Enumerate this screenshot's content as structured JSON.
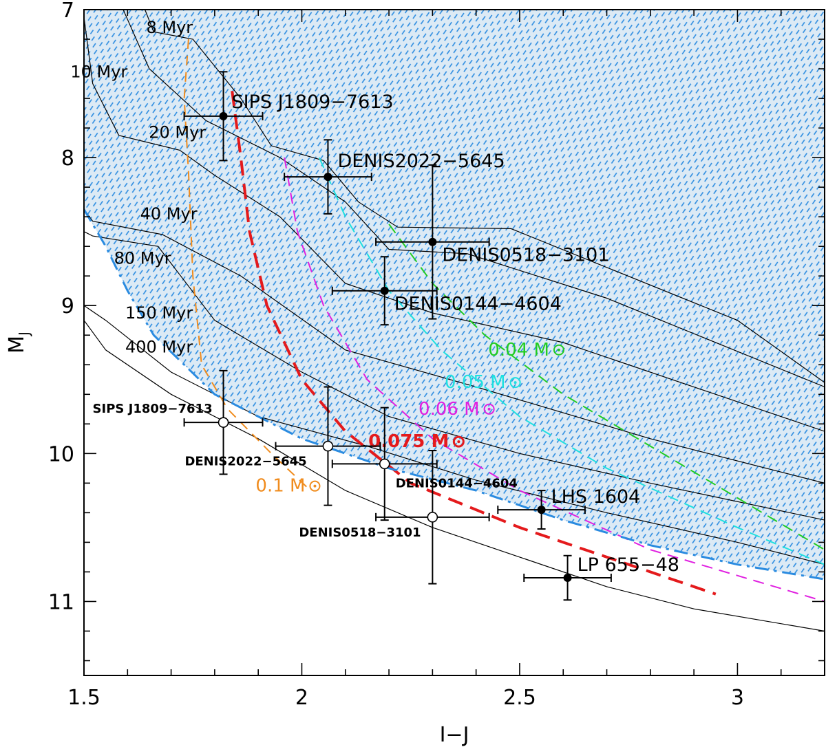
{
  "chart_data": {
    "type": "scatter",
    "title": "",
    "xlabel": "I−J",
    "ylabel": "M",
    "ylabel_sub": "J",
    "xlim": [
      1.5,
      3.2
    ],
    "ylim": [
      11.5,
      7.0
    ],
    "y_inverted": true,
    "x_ticks": [
      1.5,
      2,
      2.5,
      3
    ],
    "x_tick_labels": [
      "1.5",
      "2",
      "2.5",
      "3"
    ],
    "y_ticks": [
      7,
      8,
      9,
      10,
      11
    ],
    "y_tick_labels": [
      "7",
      "8",
      "9",
      "10",
      "11"
    ],
    "grid": false,
    "shaded_region": {
      "fill": "#dceaf5",
      "hatch_color": "#2a8be0",
      "boundary": [
        [
          1.5,
          8.35
        ],
        [
          1.55,
          8.6
        ],
        [
          1.6,
          8.9
        ],
        [
          1.66,
          9.2
        ],
        [
          1.8,
          9.6
        ],
        [
          2.0,
          9.9
        ],
        [
          2.2,
          10.1
        ],
        [
          2.4,
          10.25
        ],
        [
          2.6,
          10.45
        ],
        [
          2.8,
          10.62
        ],
        [
          3.0,
          10.75
        ],
        [
          3.2,
          10.85
        ]
      ]
    },
    "isochrones": [
      {
        "label": "8 Myr",
        "points": [
          [
            1.64,
            7.0
          ],
          [
            1.66,
            7.15
          ],
          [
            1.75,
            7.2
          ],
          [
            1.86,
            7.6
          ],
          [
            1.93,
            7.92
          ],
          [
            2.05,
            8.02
          ],
          [
            2.13,
            8.3
          ],
          [
            2.22,
            8.47
          ],
          [
            2.48,
            8.48
          ],
          [
            3.0,
            9.1
          ],
          [
            3.2,
            9.52
          ]
        ]
      },
      {
        "label": "10 Myr",
        "points": [
          [
            1.59,
            7.0
          ],
          [
            1.65,
            7.4
          ],
          [
            1.78,
            7.75
          ],
          [
            1.95,
            8.0
          ],
          [
            2.1,
            8.3
          ],
          [
            2.2,
            8.62
          ],
          [
            2.38,
            8.65
          ],
          [
            2.7,
            8.95
          ],
          [
            3.2,
            9.55
          ]
        ]
      },
      {
        "label": "20 Myr",
        "points": [
          [
            1.5,
            7.05
          ],
          [
            1.52,
            7.5
          ],
          [
            1.58,
            7.85
          ],
          [
            1.72,
            7.95
          ],
          [
            1.8,
            8.12
          ],
          [
            1.95,
            8.4
          ],
          [
            2.1,
            8.85
          ],
          [
            2.3,
            9.05
          ],
          [
            2.6,
            9.25
          ],
          [
            3.2,
            9.85
          ]
        ]
      },
      {
        "label": "40 Myr",
        "points": [
          [
            1.5,
            8.35
          ],
          [
            1.52,
            8.43
          ],
          [
            1.68,
            8.52
          ],
          [
            1.86,
            8.8
          ],
          [
            2.1,
            9.3
          ],
          [
            2.4,
            9.55
          ],
          [
            2.8,
            9.9
          ],
          [
            3.2,
            10.2
          ]
        ]
      },
      {
        "label": "80 Myr",
        "points": [
          [
            1.5,
            8.5
          ],
          [
            1.52,
            8.53
          ],
          [
            1.67,
            8.6
          ],
          [
            1.8,
            9.1
          ],
          [
            2.0,
            9.45
          ],
          [
            2.2,
            9.75
          ],
          [
            2.5,
            10.0
          ],
          [
            2.8,
            10.2
          ],
          [
            3.2,
            10.45
          ]
        ]
      },
      {
        "label": "150 Myr",
        "points": [
          [
            1.5,
            9.0
          ],
          [
            1.55,
            9.1
          ],
          [
            1.7,
            9.45
          ],
          [
            1.9,
            9.75
          ],
          [
            2.15,
            9.95
          ],
          [
            2.4,
            10.18
          ],
          [
            2.7,
            10.4
          ],
          [
            3.0,
            10.6
          ],
          [
            3.2,
            10.75
          ]
        ]
      },
      {
        "label": "400 Myr",
        "points": [
          [
            1.5,
            9.1
          ],
          [
            1.55,
            9.3
          ],
          [
            1.7,
            9.6
          ],
          [
            1.9,
            9.9
          ],
          [
            2.1,
            10.25
          ],
          [
            2.3,
            10.5
          ],
          [
            2.5,
            10.7
          ],
          [
            2.7,
            10.9
          ],
          [
            2.9,
            11.05
          ],
          [
            3.2,
            11.2
          ]
        ]
      }
    ],
    "mass_tracks": [
      {
        "label": "0.1 M",
        "color": "#f08c1e",
        "width": 2,
        "dash": "14,10",
        "points": [
          [
            1.74,
            7.2
          ],
          [
            1.73,
            7.6
          ],
          [
            1.74,
            8.1
          ],
          [
            1.75,
            8.8
          ],
          [
            1.77,
            9.4
          ],
          [
            1.83,
            9.7
          ],
          [
            1.93,
            10.0
          ],
          [
            2.02,
            10.25
          ]
        ]
      },
      {
        "label": "0.075 M",
        "color": "#e41a1c",
        "width": 4,
        "dash": "22,12",
        "points": [
          [
            1.84,
            7.55
          ],
          [
            1.86,
            8.0
          ],
          [
            1.88,
            8.5
          ],
          [
            1.92,
            9.0
          ],
          [
            2.0,
            9.5
          ],
          [
            2.1,
            9.85
          ],
          [
            2.25,
            10.2
          ],
          [
            2.5,
            10.5
          ],
          [
            2.7,
            10.7
          ],
          [
            2.95,
            10.95
          ]
        ]
      },
      {
        "label": "0.06 M",
        "color": "#e020e0",
        "width": 2,
        "dash": "16,10",
        "points": [
          [
            1.96,
            8.0
          ],
          [
            1.99,
            8.5
          ],
          [
            2.05,
            9.0
          ],
          [
            2.15,
            9.5
          ],
          [
            2.3,
            9.9
          ],
          [
            2.5,
            10.25
          ],
          [
            2.8,
            10.65
          ],
          [
            3.2,
            11.0
          ]
        ]
      },
      {
        "label": "0.05 M",
        "color": "#1ee0e0",
        "width": 2,
        "dash": "16,10",
        "points": [
          [
            2.04,
            8.0
          ],
          [
            2.1,
            8.4
          ],
          [
            2.2,
            8.9
          ],
          [
            2.32,
            9.3
          ],
          [
            2.5,
            9.75
          ],
          [
            2.7,
            10.1
          ],
          [
            3.0,
            10.5
          ],
          [
            3.2,
            10.75
          ]
        ]
      },
      {
        "label": "0.04 M",
        "color": "#22cc22",
        "width": 2,
        "dash": "16,10",
        "points": [
          [
            2.2,
            8.45
          ],
          [
            2.3,
            8.85
          ],
          [
            2.42,
            9.2
          ],
          [
            2.6,
            9.6
          ],
          [
            2.8,
            9.95
          ],
          [
            3.0,
            10.3
          ],
          [
            3.2,
            10.65
          ]
        ]
      }
    ],
    "lithium_boundary": {
      "color": "#2a8be0",
      "width": 3,
      "dash": "20,8,4,8",
      "points": [
        [
          1.5,
          8.35
        ],
        [
          1.55,
          8.6
        ],
        [
          1.6,
          8.9
        ],
        [
          1.66,
          9.2
        ],
        [
          1.8,
          9.6
        ],
        [
          2.0,
          9.9
        ],
        [
          2.2,
          10.1
        ],
        [
          2.4,
          10.25
        ],
        [
          2.6,
          10.45
        ],
        [
          2.8,
          10.62
        ],
        [
          3.0,
          10.75
        ],
        [
          3.2,
          10.85
        ]
      ]
    },
    "objects_filled": [
      {
        "label": "SIPS J1809−7613",
        "x": 1.82,
        "y": 7.72,
        "xerr": 0.09,
        "yerr": 0.3
      },
      {
        "label": "DENIS2022−5645",
        "x": 2.06,
        "y": 8.13,
        "xerr": 0.1,
        "yerr": 0.25
      },
      {
        "label": "DENIS0518−3101",
        "x": 2.3,
        "y": 8.57,
        "xerr": 0.13,
        "yerr": 0.52
      },
      {
        "label": "DENIS0144−4604",
        "x": 2.19,
        "y": 8.9,
        "xerr": 0.12,
        "yerr": 0.23
      },
      {
        "label": "LHS 1604",
        "x": 2.55,
        "y": 10.38,
        "xerr": 0.1,
        "yerr": 0.13
      },
      {
        "label": "LP 655−48",
        "x": 2.61,
        "y": 10.84,
        "xerr": 0.1,
        "yerr": 0.15
      }
    ],
    "objects_open": [
      {
        "label": "SIPS J1809−7613",
        "x": 1.82,
        "y": 9.79,
        "xerr": 0.09,
        "yerr": 0.35
      },
      {
        "label": "DENIS2022−5645",
        "x": 2.06,
        "y": 9.95,
        "xerr": 0.12,
        "yerr": 0.4
      },
      {
        "label": "DENIS0144−4604",
        "x": 2.19,
        "y": 10.07,
        "xerr": 0.12,
        "yerr": 0.38
      },
      {
        "label": "DENIS0518−3101",
        "x": 2.3,
        "y": 10.43,
        "xerr": 0.13,
        "yerr": 0.45
      }
    ]
  }
}
